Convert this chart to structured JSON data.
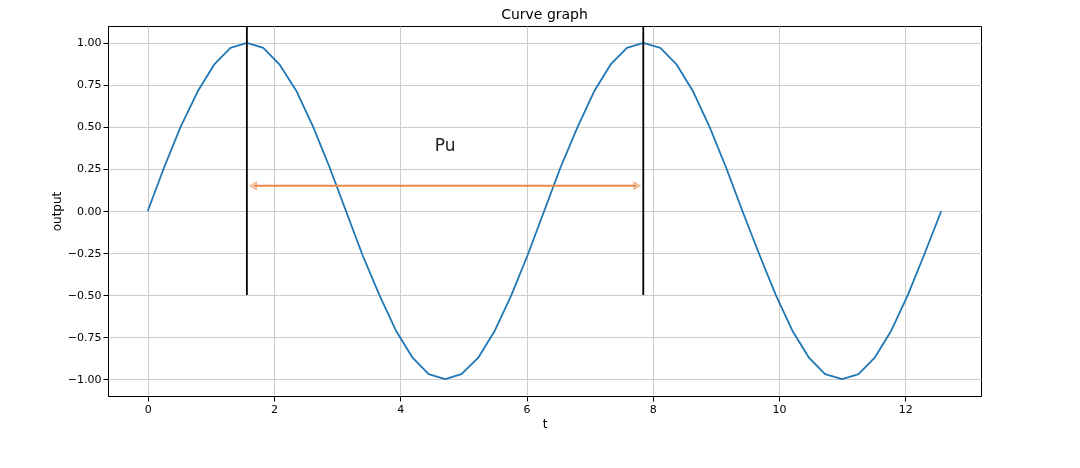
{
  "chart_data": {
    "type": "line",
    "title": "Curve graph",
    "xlabel": "t",
    "ylabel": "output",
    "xlim": [
      -0.63,
      13.2
    ],
    "ylim": [
      -1.1,
      1.1
    ],
    "xticks": [
      0,
      2,
      4,
      6,
      8,
      10,
      12
    ],
    "yticks": [
      {
        "value": -1,
        "label": "−1.00"
      },
      {
        "value": -0.75,
        "label": "−0.75"
      },
      {
        "value": -0.5,
        "label": "−0.50"
      },
      {
        "value": -0.25,
        "label": "−0.25"
      },
      {
        "value": 0,
        "label": "0.00"
      },
      {
        "value": 0.25,
        "label": "0.25"
      },
      {
        "value": 0.5,
        "label": "0.50"
      },
      {
        "value": 0.75,
        "label": "0.75"
      },
      {
        "value": 1,
        "label": "1.00"
      }
    ],
    "grid": true,
    "line_style": "solid",
    "annotations": [
      "Pu"
    ],
    "series": [
      {
        "color": "#1f77b4",
        "x": [
          0,
          0.26,
          0.52,
          0.79,
          1.05,
          1.31,
          1.57,
          1.83,
          2.09,
          2.36,
          2.62,
          2.88,
          3.14,
          3.4,
          3.67,
          3.93,
          4.19,
          4.45,
          4.71,
          4.97,
          5.24,
          5.5,
          5.76,
          6.02,
          6.28,
          6.54,
          6.81,
          7.07,
          7.33,
          7.59,
          7.85,
          8.12,
          8.38,
          8.64,
          8.9,
          9.16,
          9.42,
          9.69,
          9.95,
          10.21,
          10.47,
          10.73,
          11.0,
          11.26,
          11.52,
          11.78,
          12.04,
          12.3,
          12.57
        ],
        "values": [
          0,
          0.26,
          0.5,
          0.71,
          0.87,
          0.97,
          1,
          0.97,
          0.87,
          0.71,
          0.5,
          0.26,
          0,
          -0.26,
          -0.5,
          -0.71,
          -0.87,
          -0.97,
          -1,
          -0.97,
          -0.87,
          -0.71,
          -0.5,
          -0.26,
          0,
          0.26,
          0.5,
          0.71,
          0.87,
          0.97,
          1,
          0.97,
          0.87,
          0.71,
          0.5,
          0.26,
          0,
          -0.26,
          -0.5,
          -0.71,
          -0.87,
          -0.97,
          -1,
          -0.97,
          -0.87,
          -0.71,
          -0.5,
          -0.26,
          0
        ]
      },
      {
        "type": "line",
        "color": "#000000",
        "x": [
          1.57,
          1.57
        ],
        "values": [
          -0.5,
          1.1
        ]
      },
      {
        "type": "line",
        "color": "#000000",
        "x": [
          7.85,
          7.85
        ],
        "values": [
          -0.5,
          1.1
        ]
      },
      {
        "type": "line",
        "color": "#e8894a",
        "marker": "triangle",
        "x": [
          1.67,
          7.75
        ],
        "values": [
          0.15,
          0.15
        ]
      }
    ]
  }
}
